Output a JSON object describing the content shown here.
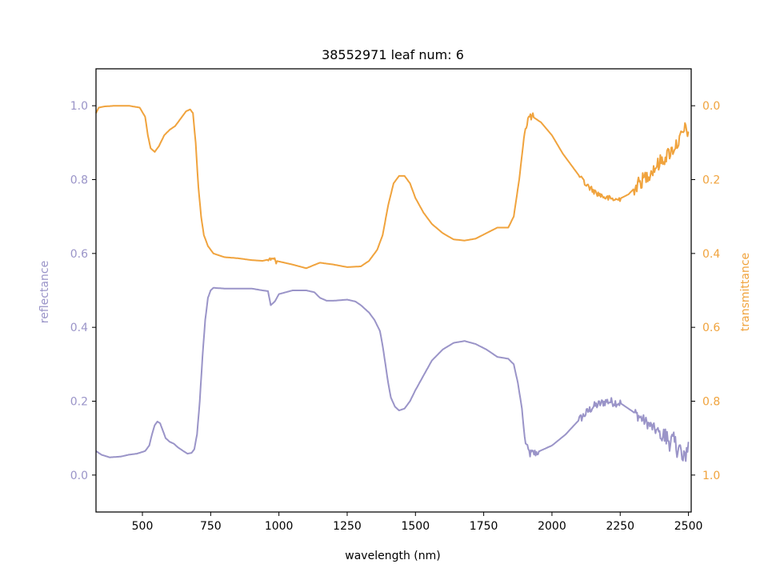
{
  "chart_data": {
    "type": "line",
    "title": "38552971 leaf num: 6",
    "xlabel": "wavelength (nm)",
    "ylabel_left": "reflectance",
    "ylabel_right": "transmittance",
    "xlim": [
      330,
      2510
    ],
    "ylim_left": [
      -0.1,
      1.1
    ],
    "ylim_right": [
      1.1,
      -0.1
    ],
    "right_axis_inverted": true,
    "x_ticks": [
      500,
      750,
      1000,
      1250,
      1500,
      1750,
      2000,
      2250,
      2500
    ],
    "x_tick_labels": [
      "500",
      "750",
      "1000",
      "1250",
      "1500",
      "1750",
      "2000",
      "2250",
      "2500"
    ],
    "y_left_ticks": [
      0.0,
      0.2,
      0.4,
      0.6,
      0.8,
      1.0
    ],
    "y_left_tick_labels": [
      "0.0",
      "0.2",
      "0.4",
      "0.6",
      "0.8",
      "1.0"
    ],
    "y_right_ticks": [
      0.0,
      0.2,
      0.4,
      0.6,
      0.8,
      1.0
    ],
    "y_right_tick_labels": [
      "0.0",
      "0.2",
      "0.4",
      "0.6",
      "0.8",
      "1.0"
    ],
    "grid": false,
    "colors": {
      "reflectance": "#9a94c8",
      "transmittance": "#f0a33d",
      "axis": "#000000"
    },
    "series": [
      {
        "key": "reflectance",
        "axis": "left",
        "noise": [
          [
            1900,
            1950,
            0.012
          ],
          [
            2100,
            2250,
            0.012
          ],
          [
            2300,
            2400,
            0.015
          ],
          [
            2400,
            2500,
            0.03
          ]
        ],
        "points": [
          [
            330,
            0.065
          ],
          [
            350,
            0.055
          ],
          [
            380,
            0.048
          ],
          [
            420,
            0.05
          ],
          [
            450,
            0.055
          ],
          [
            480,
            0.058
          ],
          [
            510,
            0.065
          ],
          [
            525,
            0.08
          ],
          [
            535,
            0.11
          ],
          [
            545,
            0.135
          ],
          [
            555,
            0.145
          ],
          [
            565,
            0.14
          ],
          [
            575,
            0.12
          ],
          [
            585,
            0.1
          ],
          [
            600,
            0.09
          ],
          [
            615,
            0.085
          ],
          [
            630,
            0.075
          ],
          [
            650,
            0.065
          ],
          [
            665,
            0.058
          ],
          [
            680,
            0.06
          ],
          [
            690,
            0.07
          ],
          [
            700,
            0.11
          ],
          [
            710,
            0.2
          ],
          [
            720,
            0.32
          ],
          [
            730,
            0.42
          ],
          [
            740,
            0.48
          ],
          [
            750,
            0.5
          ],
          [
            760,
            0.507
          ],
          [
            800,
            0.505
          ],
          [
            850,
            0.505
          ],
          [
            900,
            0.505
          ],
          [
            940,
            0.5
          ],
          [
            960,
            0.498
          ],
          [
            970,
            0.46
          ],
          [
            985,
            0.47
          ],
          [
            1000,
            0.49
          ],
          [
            1050,
            0.5
          ],
          [
            1100,
            0.5
          ],
          [
            1130,
            0.495
          ],
          [
            1150,
            0.48
          ],
          [
            1175,
            0.472
          ],
          [
            1200,
            0.472
          ],
          [
            1250,
            0.475
          ],
          [
            1280,
            0.47
          ],
          [
            1300,
            0.46
          ],
          [
            1330,
            0.44
          ],
          [
            1350,
            0.42
          ],
          [
            1370,
            0.39
          ],
          [
            1380,
            0.35
          ],
          [
            1390,
            0.3
          ],
          [
            1400,
            0.25
          ],
          [
            1410,
            0.21
          ],
          [
            1425,
            0.185
          ],
          [
            1440,
            0.175
          ],
          [
            1460,
            0.18
          ],
          [
            1480,
            0.2
          ],
          [
            1500,
            0.23
          ],
          [
            1530,
            0.27
          ],
          [
            1560,
            0.31
          ],
          [
            1600,
            0.34
          ],
          [
            1640,
            0.358
          ],
          [
            1680,
            0.363
          ],
          [
            1720,
            0.355
          ],
          [
            1760,
            0.34
          ],
          [
            1800,
            0.32
          ],
          [
            1840,
            0.315
          ],
          [
            1860,
            0.3
          ],
          [
            1875,
            0.25
          ],
          [
            1890,
            0.18
          ],
          [
            1900,
            0.1
          ],
          [
            1910,
            0.07
          ],
          [
            1920,
            0.058
          ],
          [
            1940,
            0.06
          ],
          [
            1970,
            0.07
          ],
          [
            2000,
            0.08
          ],
          [
            2050,
            0.11
          ],
          [
            2100,
            0.15
          ],
          [
            2150,
            0.185
          ],
          [
            2200,
            0.2
          ],
          [
            2250,
            0.195
          ],
          [
            2300,
            0.17
          ],
          [
            2350,
            0.14
          ],
          [
            2400,
            0.11
          ],
          [
            2440,
            0.09
          ],
          [
            2470,
            0.07
          ],
          [
            2480,
            0.03
          ],
          [
            2490,
            0.06
          ],
          [
            2500,
            0.09
          ]
        ]
      },
      {
        "key": "transmittance",
        "axis": "right",
        "noise": [
          [
            960,
            990,
            0.008
          ],
          [
            1900,
            1930,
            0.01
          ],
          [
            2100,
            2250,
            0.008
          ],
          [
            2300,
            2500,
            0.02
          ]
        ],
        "points": [
          [
            330,
            0.02
          ],
          [
            340,
            0.005
          ],
          [
            360,
            0.002
          ],
          [
            400,
            0.0
          ],
          [
            450,
            0.0
          ],
          [
            490,
            0.005
          ],
          [
            510,
            0.03
          ],
          [
            520,
            0.08
          ],
          [
            530,
            0.115
          ],
          [
            545,
            0.125
          ],
          [
            560,
            0.11
          ],
          [
            580,
            0.08
          ],
          [
            600,
            0.065
          ],
          [
            620,
            0.055
          ],
          [
            640,
            0.035
          ],
          [
            660,
            0.015
          ],
          [
            675,
            0.01
          ],
          [
            685,
            0.02
          ],
          [
            695,
            0.1
          ],
          [
            705,
            0.22
          ],
          [
            715,
            0.3
          ],
          [
            725,
            0.35
          ],
          [
            740,
            0.38
          ],
          [
            760,
            0.4
          ],
          [
            800,
            0.41
          ],
          [
            850,
            0.413
          ],
          [
            900,
            0.418
          ],
          [
            940,
            0.42
          ],
          [
            970,
            0.415
          ],
          [
            990,
            0.42
          ],
          [
            1050,
            0.43
          ],
          [
            1100,
            0.44
          ],
          [
            1150,
            0.425
          ],
          [
            1200,
            0.43
          ],
          [
            1250,
            0.437
          ],
          [
            1300,
            0.435
          ],
          [
            1330,
            0.42
          ],
          [
            1360,
            0.39
          ],
          [
            1380,
            0.35
          ],
          [
            1400,
            0.27
          ],
          [
            1420,
            0.21
          ],
          [
            1440,
            0.19
          ],
          [
            1460,
            0.19
          ],
          [
            1480,
            0.21
          ],
          [
            1500,
            0.25
          ],
          [
            1530,
            0.29
          ],
          [
            1560,
            0.32
          ],
          [
            1600,
            0.345
          ],
          [
            1640,
            0.362
          ],
          [
            1680,
            0.365
          ],
          [
            1720,
            0.36
          ],
          [
            1760,
            0.345
          ],
          [
            1800,
            0.33
          ],
          [
            1840,
            0.33
          ],
          [
            1860,
            0.3
          ],
          [
            1880,
            0.2
          ],
          [
            1900,
            0.07
          ],
          [
            1915,
            0.03
          ],
          [
            1930,
            0.03
          ],
          [
            1960,
            0.045
          ],
          [
            2000,
            0.08
          ],
          [
            2040,
            0.13
          ],
          [
            2080,
            0.17
          ],
          [
            2120,
            0.21
          ],
          [
            2160,
            0.235
          ],
          [
            2200,
            0.25
          ],
          [
            2240,
            0.255
          ],
          [
            2280,
            0.24
          ],
          [
            2320,
            0.21
          ],
          [
            2360,
            0.18
          ],
          [
            2400,
            0.15
          ],
          [
            2440,
            0.12
          ],
          [
            2470,
            0.09
          ],
          [
            2490,
            0.06
          ],
          [
            2500,
            0.07
          ]
        ]
      }
    ]
  }
}
